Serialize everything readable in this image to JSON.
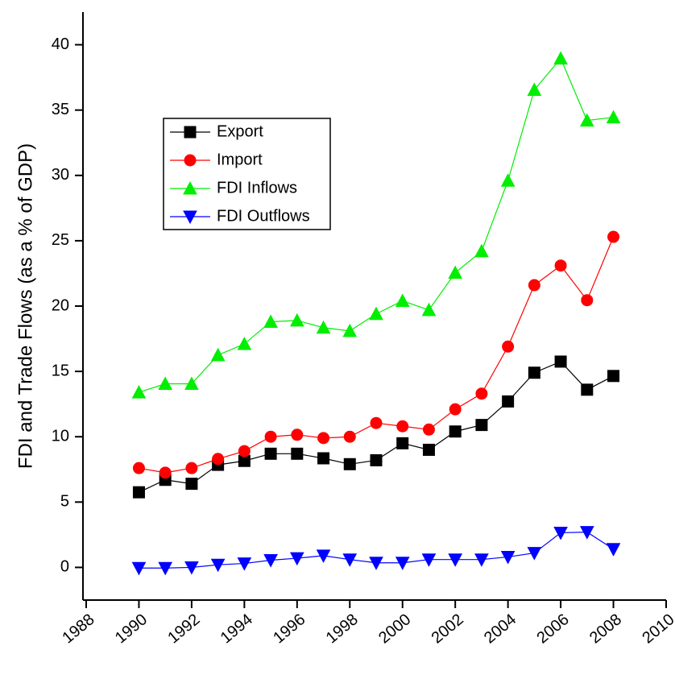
{
  "chart_data": {
    "type": "line",
    "y_label": "FDI and Trade Flows (as a % of GDP)",
    "x": [
      1990,
      1991,
      1992,
      1993,
      1994,
      1995,
      1996,
      1997,
      1998,
      1999,
      2000,
      2001,
      2002,
      2003,
      2004,
      2005,
      2006,
      2007,
      2008
    ],
    "series": [
      {
        "name": "Export",
        "color": "#000000",
        "marker": "square",
        "values": [
          5.75,
          6.7,
          6.4,
          7.85,
          8.15,
          8.7,
          8.7,
          8.35,
          7.9,
          8.2,
          9.5,
          9.0,
          10.4,
          10.9,
          12.7,
          14.9,
          15.75,
          13.6,
          14.65
        ]
      },
      {
        "name": "Import",
        "color": "#ff0000",
        "marker": "circle",
        "values": [
          7.6,
          7.25,
          7.6,
          8.3,
          8.9,
          10.0,
          10.15,
          9.9,
          10.0,
          11.05,
          10.8,
          10.55,
          12.1,
          13.3,
          16.9,
          21.6,
          23.1,
          20.45,
          25.3
        ]
      },
      {
        "name": "FDI Inflows",
        "color": "#00ee00",
        "marker": "triangle-up",
        "values": [
          13.4,
          14.05,
          14.05,
          16.25,
          17.1,
          18.8,
          18.9,
          18.35,
          18.1,
          19.4,
          20.4,
          19.7,
          22.55,
          24.2,
          29.6,
          36.55,
          38.95,
          34.2,
          34.45
        ]
      },
      {
        "name": "FDI Outflows",
        "color": "#0000ff",
        "marker": "triangle-down",
        "values": [
          -0.05,
          -0.05,
          0,
          0.2,
          0.3,
          0.55,
          0.7,
          0.9,
          0.6,
          0.35,
          0.35,
          0.6,
          0.6,
          0.6,
          0.8,
          1.1,
          2.65,
          2.7,
          1.4
        ]
      }
    ],
    "xlim": [
      1988,
      2010
    ],
    "xticks": [
      1988,
      1990,
      1992,
      1994,
      1996,
      1998,
      2000,
      2002,
      2004,
      2006,
      2008,
      2010
    ],
    "ylim": [
      -2.5,
      42.5
    ],
    "yticks": [
      0,
      5,
      10,
      15,
      20,
      25,
      30,
      35,
      40
    ],
    "grid": false,
    "legend": "upper-left"
  }
}
